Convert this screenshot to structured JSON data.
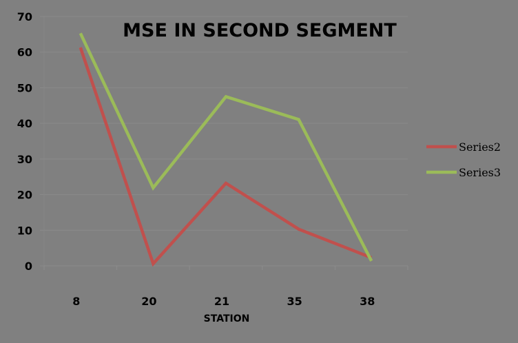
{
  "chart_data": {
    "type": "line",
    "title": "MSE IN SECOND SEGMENT",
    "xlabel": "STATION",
    "ylabel": "",
    "categories": [
      "8",
      "20",
      "21",
      "35",
      "38"
    ],
    "series": [
      {
        "name": "Series2",
        "color": "#C0504D",
        "values": [
          61.3,
          0.6,
          23.2,
          10.3,
          2.3
        ]
      },
      {
        "name": "Series3",
        "color": "#9BBB59",
        "values": [
          65.3,
          21.9,
          47.5,
          41.1,
          1.4
        ]
      }
    ],
    "ylim": [
      0,
      70
    ],
    "yticks": [
      "0",
      "10",
      "20",
      "30",
      "40",
      "50",
      "60",
      "70"
    ],
    "grid": true,
    "legend_position": "right",
    "background": "#808080"
  }
}
